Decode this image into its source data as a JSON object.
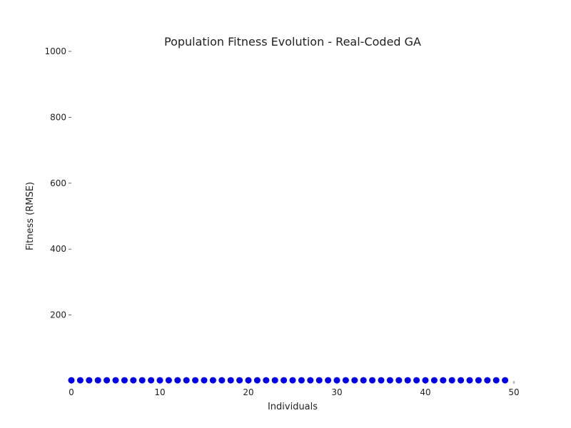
{
  "chart_data": {
    "type": "scatter",
    "title": "Population Fitness Evolution - Real-Coded GA",
    "xlabel": "Individuals",
    "ylabel": "Fitness (RMSE)",
    "xlim": [
      0,
      50
    ],
    "ylim": [
      0,
      1000
    ],
    "xticks": [
      0,
      10,
      20,
      30,
      40,
      50
    ],
    "yticks": [
      200,
      400,
      600,
      800,
      1000
    ],
    "grid": false,
    "marker_color": "#0000ee",
    "series": [
      {
        "x": [
          0,
          1,
          2,
          3,
          4,
          5,
          6,
          7,
          8,
          9,
          10,
          11,
          12,
          13,
          14,
          15,
          16,
          17,
          18,
          19,
          20,
          21,
          22,
          23,
          24,
          25,
          26,
          27,
          28,
          29,
          30,
          31,
          32,
          33,
          34,
          35,
          36,
          37,
          38,
          39,
          40,
          41,
          42,
          43,
          44,
          45,
          46,
          47,
          48,
          49
        ],
        "y": [
          2,
          2,
          2,
          2,
          2,
          2,
          2,
          2,
          2,
          2,
          2,
          2,
          2,
          2,
          2,
          2,
          2,
          2,
          2,
          2,
          2,
          2,
          2,
          2,
          2,
          2,
          2,
          2,
          2,
          2,
          2,
          2,
          2,
          2,
          2,
          2,
          2,
          2,
          2,
          2,
          2,
          2,
          2,
          2,
          2,
          2,
          2,
          2,
          2,
          2
        ]
      }
    ]
  }
}
